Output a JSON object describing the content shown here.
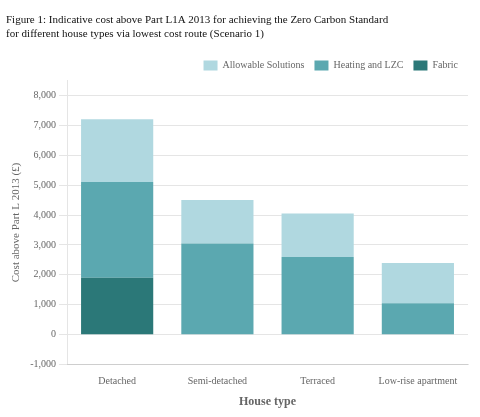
{
  "chart_data": {
    "type": "bar",
    "title": [
      "Figure 1: Indicative cost above Part L1A 2013 for achieving the Zero Carbon Standard",
      "for different house types via lowest cost route (Scenario 1)"
    ],
    "xlabel": "House type",
    "ylabel": "Cost above Part L 2013 (£)",
    "categories": [
      "Detached",
      "Semi-detached",
      "Terraced",
      "Low-rise apartment"
    ],
    "series": [
      {
        "name": "Fabric",
        "color": "#2b7878",
        "values": [
          1900,
          0,
          0,
          0
        ]
      },
      {
        "name": "Heating and LZC",
        "color": "#5ba8b0",
        "values": [
          3200,
          3050,
          2600,
          1050
        ]
      },
      {
        "name": "Allowable Solutions",
        "color": "#b0d8e0",
        "values": [
          2100,
          1450,
          1450,
          1350
        ]
      }
    ],
    "stacked": true,
    "ylim": [
      -1000,
      8500
    ],
    "yticks": [
      {
        "value": -1000,
        "label": "-1,000"
      },
      0,
      {
        "value": 1000,
        "label": "1,000"
      },
      {
        "value": 2000,
        "label": "2,000"
      },
      {
        "value": 3000,
        "label": "3,000"
      },
      {
        "value": 4000,
        "label": "4,000"
      },
      {
        "value": 5000,
        "label": "5,000"
      },
      {
        "value": 6000,
        "label": "6,000"
      },
      {
        "value": 7000,
        "label": "7,000"
      },
      {
        "value": 8000,
        "label": "8,000"
      }
    ],
    "grid": true,
    "legend": "upper right"
  }
}
